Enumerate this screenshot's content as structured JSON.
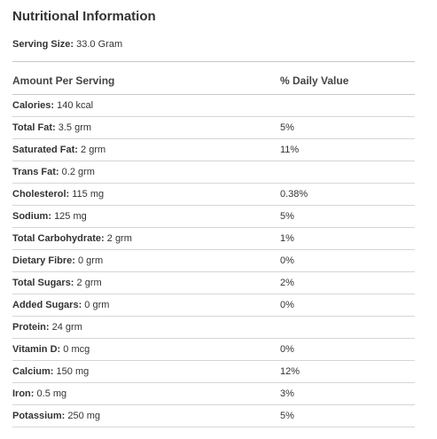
{
  "title": "Nutritional Information",
  "serving": {
    "label": "Serving Size:",
    "value": "33.0 Gram"
  },
  "table": {
    "headers": [
      "Amount Per Serving",
      "% Daily Value"
    ],
    "rows": [
      {
        "name": "Calories:",
        "amount": "140 kcal",
        "dv": ""
      },
      {
        "name": "Total Fat:",
        "amount": "3.5 grm",
        "dv": "5%"
      },
      {
        "name": "Saturated Fat:",
        "amount": "2 grm",
        "dv": "11%"
      },
      {
        "name": "Trans Fat:",
        "amount": "0.2 grm",
        "dv": ""
      },
      {
        "name": "Cholesterol:",
        "amount": "115 mg",
        "dv": "0.38%"
      },
      {
        "name": "Sodium:",
        "amount": "125 mg",
        "dv": "5%"
      },
      {
        "name": "Total Carbohydrate:",
        "amount": "2 grm",
        "dv": "1%"
      },
      {
        "name": "Dietary Fibre:",
        "amount": "0 grm",
        "dv": "0%"
      },
      {
        "name": "Total Sugars:",
        "amount": "2 grm",
        "dv": "2%"
      },
      {
        "name": "Added Sugars:",
        "amount": "0 grm",
        "dv": "0%"
      },
      {
        "name": "Protein:",
        "amount": "24 grm",
        "dv": ""
      },
      {
        "name": "Vitamin D:",
        "amount": "0 mcg",
        "dv": "0%"
      },
      {
        "name": "Calcium:",
        "amount": "150 mg",
        "dv": "12%"
      },
      {
        "name": "Iron:",
        "amount": "0.5 mg",
        "dv": "3%"
      },
      {
        "name": "Potassium:",
        "amount": "250 mg",
        "dv": "5%"
      }
    ]
  }
}
